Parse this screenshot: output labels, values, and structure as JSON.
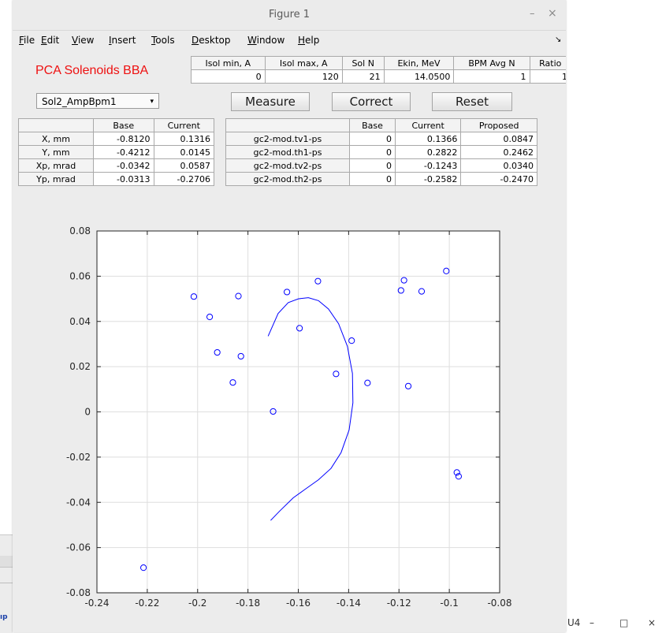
{
  "window": {
    "title": "Figure 1",
    "minimize": "–",
    "close": "×"
  },
  "menu": [
    {
      "key": "F",
      "rest": "ile"
    },
    {
      "key": "E",
      "rest": "dit"
    },
    {
      "key": "V",
      "rest": "iew"
    },
    {
      "key": "I",
      "rest": "nsert"
    },
    {
      "key": "T",
      "rest": "ools"
    },
    {
      "key": "D",
      "rest": "esktop"
    },
    {
      "key": "W",
      "rest": "indow"
    },
    {
      "key": "H",
      "rest": "elp"
    }
  ],
  "menu_arrow": "↘",
  "app_title": "PCA Solenoids BBA",
  "params": {
    "headers": [
      "Isol min, A",
      "Isol max, A",
      "Sol N",
      "Ekin, MeV",
      "BPM Avg N",
      "Ratio"
    ],
    "values": [
      "0",
      "120",
      "21",
      "14.0500",
      "1",
      "1"
    ]
  },
  "dropdown": {
    "value": "Sol2_AmpBpm1",
    "arrow": "▾"
  },
  "buttons": {
    "measure": "Measure",
    "correct": "Correct",
    "reset": "Reset"
  },
  "base_table": {
    "headers": [
      "",
      "Base",
      "Current"
    ],
    "rows": [
      {
        "label": "X, mm",
        "base": "-0.8120",
        "current": "0.1316"
      },
      {
        "label": "Y, mm",
        "base": "-0.4212",
        "current": "0.0145"
      },
      {
        "label": "Xp, mrad",
        "base": "-0.0342",
        "current": "0.0587"
      },
      {
        "label": "Yp, mrad",
        "base": "-0.0313",
        "current": "-0.2706"
      }
    ]
  },
  "corr_table": {
    "headers": [
      "",
      "Base",
      "Current",
      "Proposed"
    ],
    "rows": [
      {
        "label": "gc2-mod.tv1-ps",
        "base": "0",
        "current": "0.1366",
        "proposed": "0.0847"
      },
      {
        "label": "gc2-mod.th1-ps",
        "base": "0",
        "current": "0.2822",
        "proposed": "0.2462"
      },
      {
        "label": "gc2-mod.tv2-ps",
        "base": "0",
        "current": "-0.1243",
        "proposed": "0.0340"
      },
      {
        "label": "gc2-mod.th2-ps",
        "base": "0",
        "current": "-0.2582",
        "proposed": "-0.2470"
      }
    ]
  },
  "chart_data": {
    "type": "scatter",
    "title": "",
    "xlabel": "",
    "ylabel": "",
    "xlim": [
      -0.24,
      -0.08
    ],
    "ylim": [
      -0.08,
      0.08
    ],
    "xticks": [
      -0.24,
      -0.22,
      -0.2,
      -0.18,
      -0.16,
      -0.14,
      -0.12,
      -0.1,
      -0.08
    ],
    "yticks": [
      -0.08,
      -0.06,
      -0.04,
      -0.02,
      0,
      0.02,
      0.04,
      0.06,
      0.08
    ],
    "xtick_labels": [
      "-0.24",
      "-0.22",
      "-0.2",
      "-0.18",
      "-0.16",
      "-0.14",
      "-0.12",
      "-0.1",
      "-0.08"
    ],
    "ytick_labels": [
      "-0.08",
      "-0.06",
      "-0.04",
      "-0.02",
      "0",
      "0.02",
      "0.04",
      "0.06",
      "0.08"
    ],
    "grid": true,
    "color": "#0000ff",
    "points": [
      [
        -0.2215,
        -0.0689
      ],
      [
        -0.2015,
        0.051
      ],
      [
        -0.1952,
        0.042
      ],
      [
        -0.1922,
        0.0263
      ],
      [
        -0.186,
        0.013
      ],
      [
        -0.1838,
        0.0512
      ],
      [
        -0.1828,
        0.0246
      ],
      [
        -0.17,
        0.0002
      ],
      [
        -0.1645,
        0.053
      ],
      [
        -0.1595,
        0.037
      ],
      [
        -0.1522,
        0.0578
      ],
      [
        -0.145,
        0.0168
      ],
      [
        -0.1388,
        0.0315
      ],
      [
        -0.1325,
        0.0128
      ],
      [
        -0.1192,
        0.0537
      ],
      [
        -0.118,
        0.0582
      ],
      [
        -0.1163,
        0.0114
      ],
      [
        -0.111,
        0.0533
      ],
      [
        -0.1012,
        0.0623
      ],
      [
        -0.097,
        -0.0268
      ],
      [
        -0.0963,
        -0.0285
      ]
    ],
    "fit_curve": [
      [
        -0.172,
        0.0335
      ],
      [
        -0.168,
        0.0435
      ],
      [
        -0.164,
        0.0483
      ],
      [
        -0.16,
        0.05
      ],
      [
        -0.156,
        0.0505
      ],
      [
        -0.152,
        0.0492
      ],
      [
        -0.148,
        0.0455
      ],
      [
        -0.144,
        0.039
      ],
      [
        -0.1405,
        0.029
      ],
      [
        -0.1385,
        0.017
      ],
      [
        -0.1383,
        0.004
      ],
      [
        -0.1398,
        -0.008
      ],
      [
        -0.143,
        -0.018
      ],
      [
        -0.147,
        -0.025
      ],
      [
        -0.152,
        -0.03
      ],
      [
        -0.157,
        -0.034
      ],
      [
        -0.162,
        -0.038
      ],
      [
        -0.1675,
        -0.044
      ],
      [
        -0.171,
        -0.048
      ]
    ]
  }
}
